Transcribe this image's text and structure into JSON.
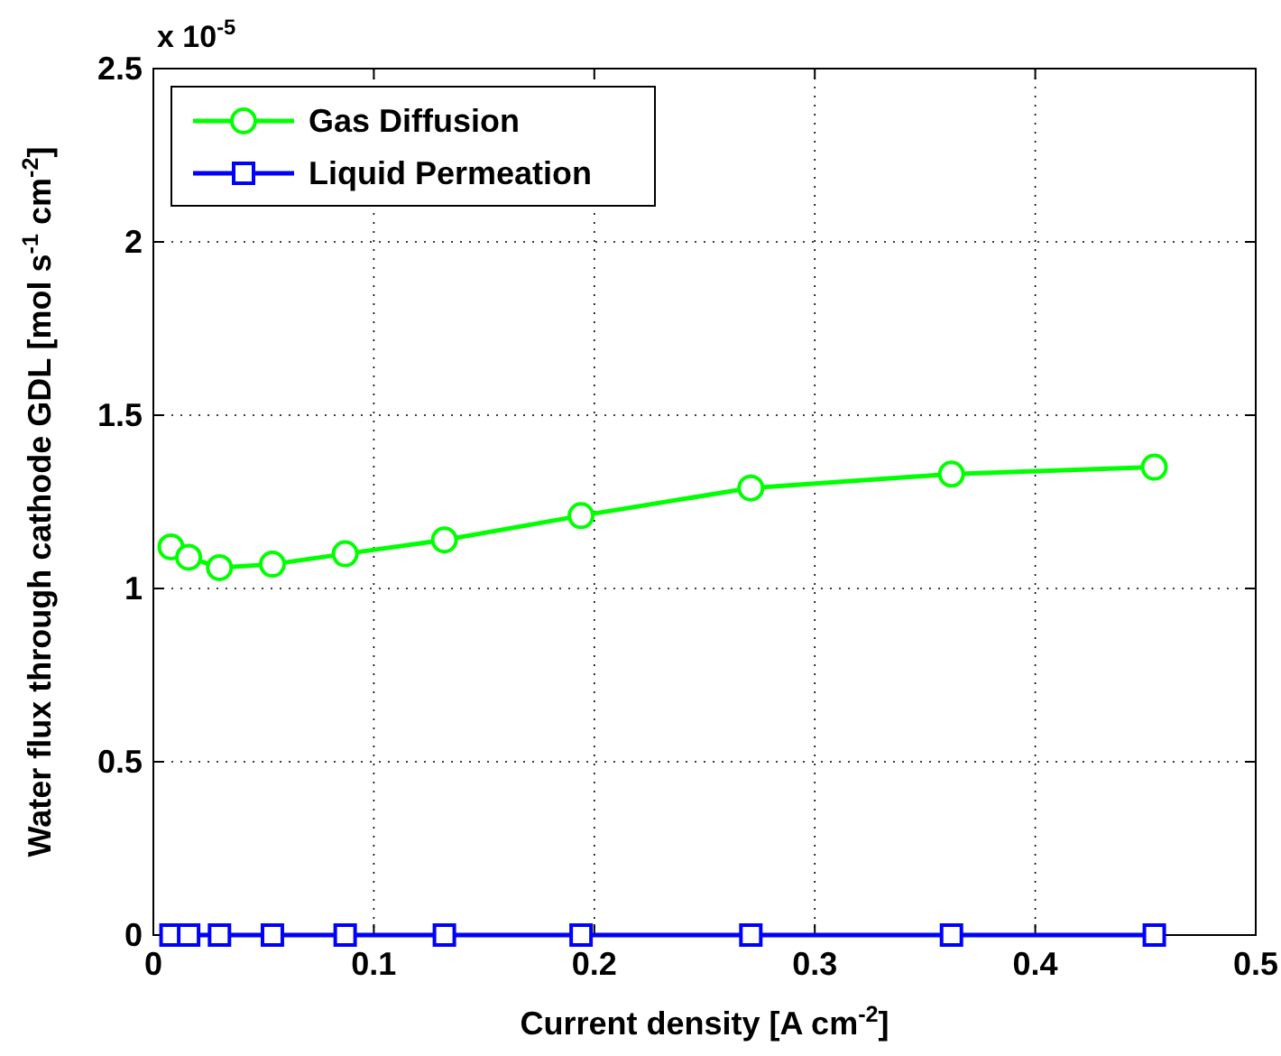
{
  "chart_data": {
    "type": "line",
    "xlabel": "Current density [A cm$^{-2}$]",
    "ylabel": "Water flux through cathode GDL [mol s$^{-1}$ cm$^{-2}$]",
    "annotations": [
      "x 10$^{-5}$"
    ],
    "x": [
      0.008,
      0.016,
      0.03,
      0.054,
      0.087,
      0.132,
      0.194,
      0.271,
      0.362,
      0.454
    ],
    "series": [
      {
        "name": "Gas Diffusion",
        "color": "#00ff00",
        "marker": "circle",
        "values": [
          1.12,
          1.09,
          1.06,
          1.07,
          1.1,
          1.14,
          1.21,
          1.29,
          1.33,
          1.35
        ]
      },
      {
        "name": "Liquid Permeation",
        "color": "#0000ff",
        "marker": "square",
        "values": [
          0,
          0,
          0,
          0,
          0,
          0,
          0,
          0,
          0,
          0
        ]
      }
    ],
    "xlim": [
      0,
      0.5
    ],
    "xticks": [
      0,
      0.1,
      0.2,
      0.3,
      0.4,
      0.5
    ],
    "ylim": [
      0,
      2.5
    ],
    "yticks": [
      0,
      0.5,
      1,
      1.5,
      2,
      2.5
    ],
    "grid": true,
    "legend": "top left",
    "line_style": "solid"
  }
}
